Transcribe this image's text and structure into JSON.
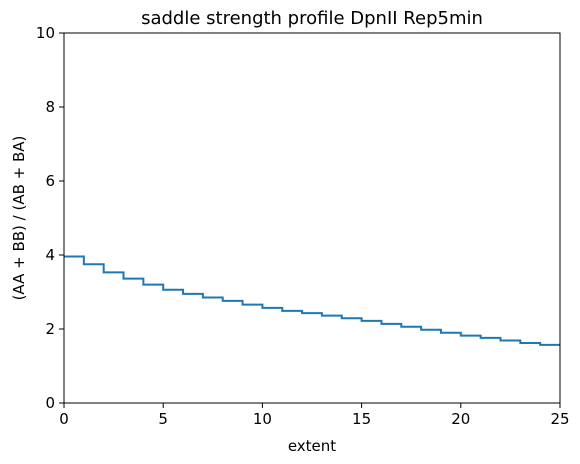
{
  "chart_data": {
    "type": "line",
    "step": "post",
    "title": "saddle strength profile DpnII Rep5min",
    "xlabel": "extent",
    "ylabel": "(AA + BB) / (AB + BA)",
    "xlim": [
      0,
      25
    ],
    "ylim": [
      0,
      10
    ],
    "xticks": [
      "0",
      "5",
      "10",
      "15",
      "20",
      "25"
    ],
    "yticks": [
      "0",
      "2",
      "4",
      "6",
      "8",
      "10"
    ],
    "grid": false,
    "color": "#1f77b4",
    "x": [
      0,
      1,
      2,
      3,
      4,
      5,
      6,
      7,
      8,
      9,
      10,
      11,
      12,
      13,
      14,
      15,
      16,
      17,
      18,
      19,
      20,
      21,
      22,
      23,
      24
    ],
    "values": [
      3.96,
      3.75,
      3.53,
      3.36,
      3.2,
      3.06,
      2.95,
      2.85,
      2.76,
      2.66,
      2.57,
      2.49,
      2.43,
      2.36,
      2.29,
      2.22,
      2.14,
      2.06,
      1.98,
      1.9,
      1.82,
      1.76,
      1.69,
      1.62,
      1.57
    ]
  }
}
